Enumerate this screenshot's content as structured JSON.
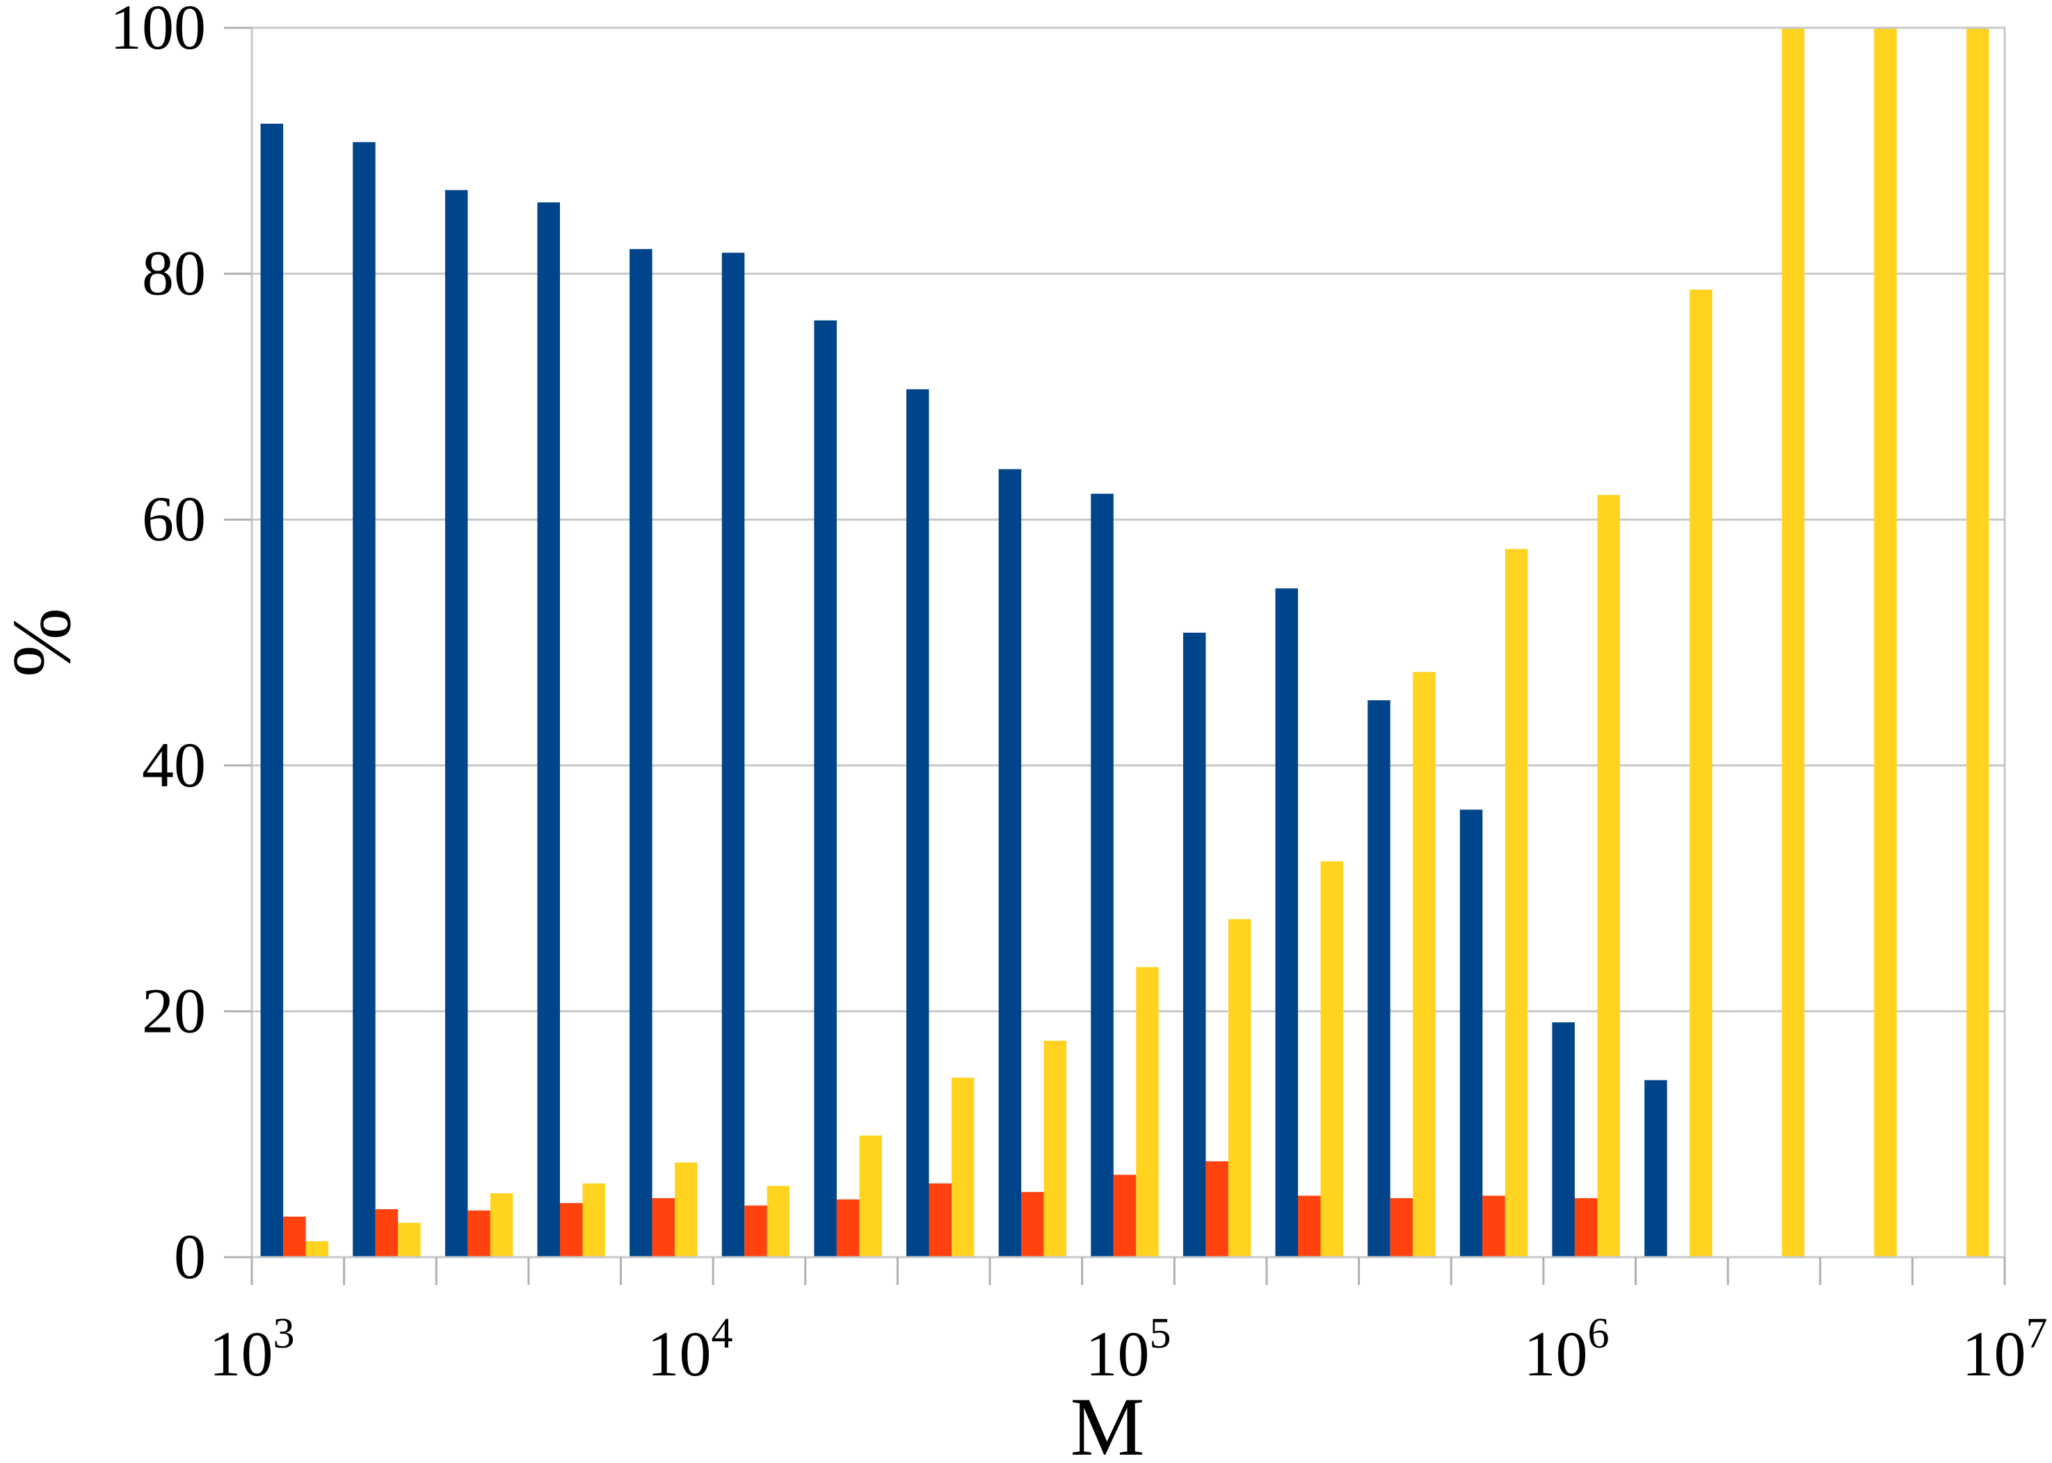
{
  "chart_data": {
    "type": "bar",
    "xlabel": "M",
    "ylabel": "%",
    "xscale": "log",
    "xlim": [
      1000,
      10000000
    ],
    "ylim": [
      0,
      100
    ],
    "y_ticks": [
      "0",
      "20",
      "40",
      "60",
      "80",
      "100"
    ],
    "x_ticks": [
      {
        "base": "10",
        "exp": "3"
      },
      {
        "base": "10",
        "exp": "4"
      },
      {
        "base": "10",
        "exp": "5"
      },
      {
        "base": "10",
        "exp": "6"
      },
      {
        "base": "10",
        "exp": "7"
      }
    ],
    "grid": true,
    "legend": "none",
    "series_colors": [
      "#00448a",
      "#ff420e",
      "#ffd320"
    ],
    "categories": [
      "1",
      "2",
      "3",
      "4",
      "5",
      "6",
      "7",
      "8",
      "9",
      "10",
      "11",
      "12",
      "13",
      "14",
      "15",
      "16",
      "17",
      "18",
      "19"
    ],
    "series": [
      {
        "values": [
          92.2,
          90.7,
          86.8,
          85.8,
          82.0,
          81.7,
          76.2,
          70.6,
          64.1,
          62.1,
          50.8,
          54.4,
          45.3,
          36.4,
          19.1,
          14.4,
          0,
          0,
          0
        ]
      },
      {
        "values": [
          3.3,
          3.9,
          3.8,
          4.4,
          4.8,
          4.2,
          4.7,
          6.0,
          5.3,
          6.7,
          7.8,
          5.0,
          4.8,
          5.0,
          4.8,
          0,
          0,
          0,
          0
        ]
      },
      {
        "values": [
          1.3,
          2.8,
          5.2,
          6.0,
          7.7,
          5.8,
          9.9,
          14.6,
          17.6,
          23.6,
          27.5,
          32.2,
          47.6,
          57.6,
          62.0,
          78.7,
          100,
          100,
          100
        ]
      }
    ]
  }
}
